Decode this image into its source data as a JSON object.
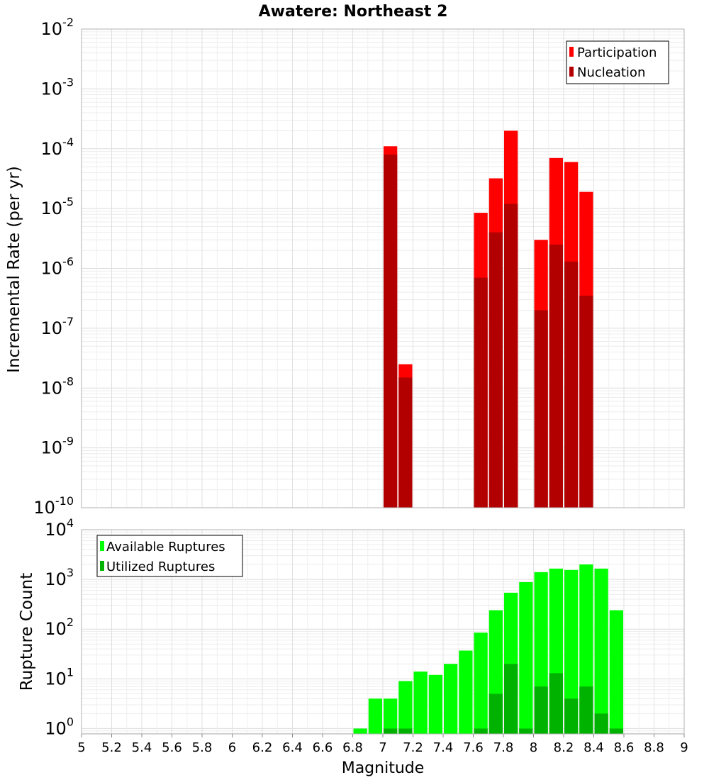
{
  "chart_data": [
    {
      "type": "bar",
      "title": "Awatere: Northeast 2",
      "xlabel": "",
      "ylabel": "Incremental Rate (per yr)",
      "yscale": "log",
      "xlim": [
        5,
        9
      ],
      "ylim": [
        1e-10,
        0.01
      ],
      "ytick_base": "10",
      "yticks_exponents": [
        "-10",
        "-9",
        "-8",
        "-7",
        "-6",
        "-5",
        "-4",
        "-3",
        "-2"
      ],
      "grid": true,
      "legend_position": "top-right",
      "bin_width": 0.1,
      "colors": {
        "Participation": "#ff0000",
        "Nucleation": "#b20000"
      },
      "series": [
        {
          "name": "Participation",
          "x": [
            7.05,
            7.15,
            7.65,
            7.75,
            7.85,
            8.05,
            8.15,
            8.25,
            8.35
          ],
          "values": [
            0.00011,
            2.5e-08,
            8.5e-06,
            3.2e-05,
            0.0002,
            3e-06,
            7e-05,
            6e-05,
            1.9e-05
          ]
        },
        {
          "name": "Nucleation",
          "x": [
            7.05,
            7.15,
            7.65,
            7.75,
            7.85,
            8.05,
            8.15,
            8.25,
            8.35
          ],
          "values": [
            8e-05,
            1.5e-08,
            7e-07,
            4e-06,
            1.2e-05,
            2e-07,
            2.5e-06,
            1.3e-06,
            3.5e-07
          ]
        }
      ]
    },
    {
      "type": "bar",
      "xlabel": "Magnitude",
      "ylabel": "Rupture Count",
      "yscale": "log",
      "xlim": [
        5,
        9
      ],
      "ylim": [
        0.78,
        10000.0
      ],
      "ytick_base": "10",
      "yticks_exponents": [
        "0",
        "1",
        "2",
        "3",
        "4"
      ],
      "xticks": [
        "5",
        "5.2",
        "5.4",
        "5.6",
        "5.8",
        "6",
        "6.2",
        "6.4",
        "6.6",
        "6.8",
        "7",
        "7.2",
        "7.4",
        "7.6",
        "7.8",
        "8",
        "8.2",
        "8.4",
        "8.6",
        "8.8",
        "9"
      ],
      "grid": true,
      "legend_position": "top-left",
      "bin_width": 0.1,
      "colors": {
        "Available Ruptures": "#00ff00",
        "Utilized Ruptures": "#00b200"
      },
      "series": [
        {
          "name": "Available Ruptures",
          "x": [
            6.85,
            6.95,
            7.05,
            7.15,
            7.25,
            7.35,
            7.45,
            7.55,
            7.65,
            7.75,
            7.85,
            7.95,
            8.05,
            8.15,
            8.25,
            8.35,
            8.45,
            8.55
          ],
          "values": [
            1,
            4,
            4,
            9,
            14,
            12,
            20,
            37,
            85,
            240,
            540,
            880,
            1400,
            1650,
            1550,
            2000,
            1650,
            240
          ]
        },
        {
          "name": "Utilized Ruptures",
          "x": [
            7.05,
            7.15,
            7.65,
            7.75,
            7.85,
            7.95,
            8.05,
            8.15,
            8.25,
            8.35,
            8.45,
            8.55
          ],
          "values": [
            1,
            1,
            1,
            5,
            20,
            1,
            7,
            13,
            4,
            7,
            2,
            1
          ]
        }
      ]
    }
  ]
}
